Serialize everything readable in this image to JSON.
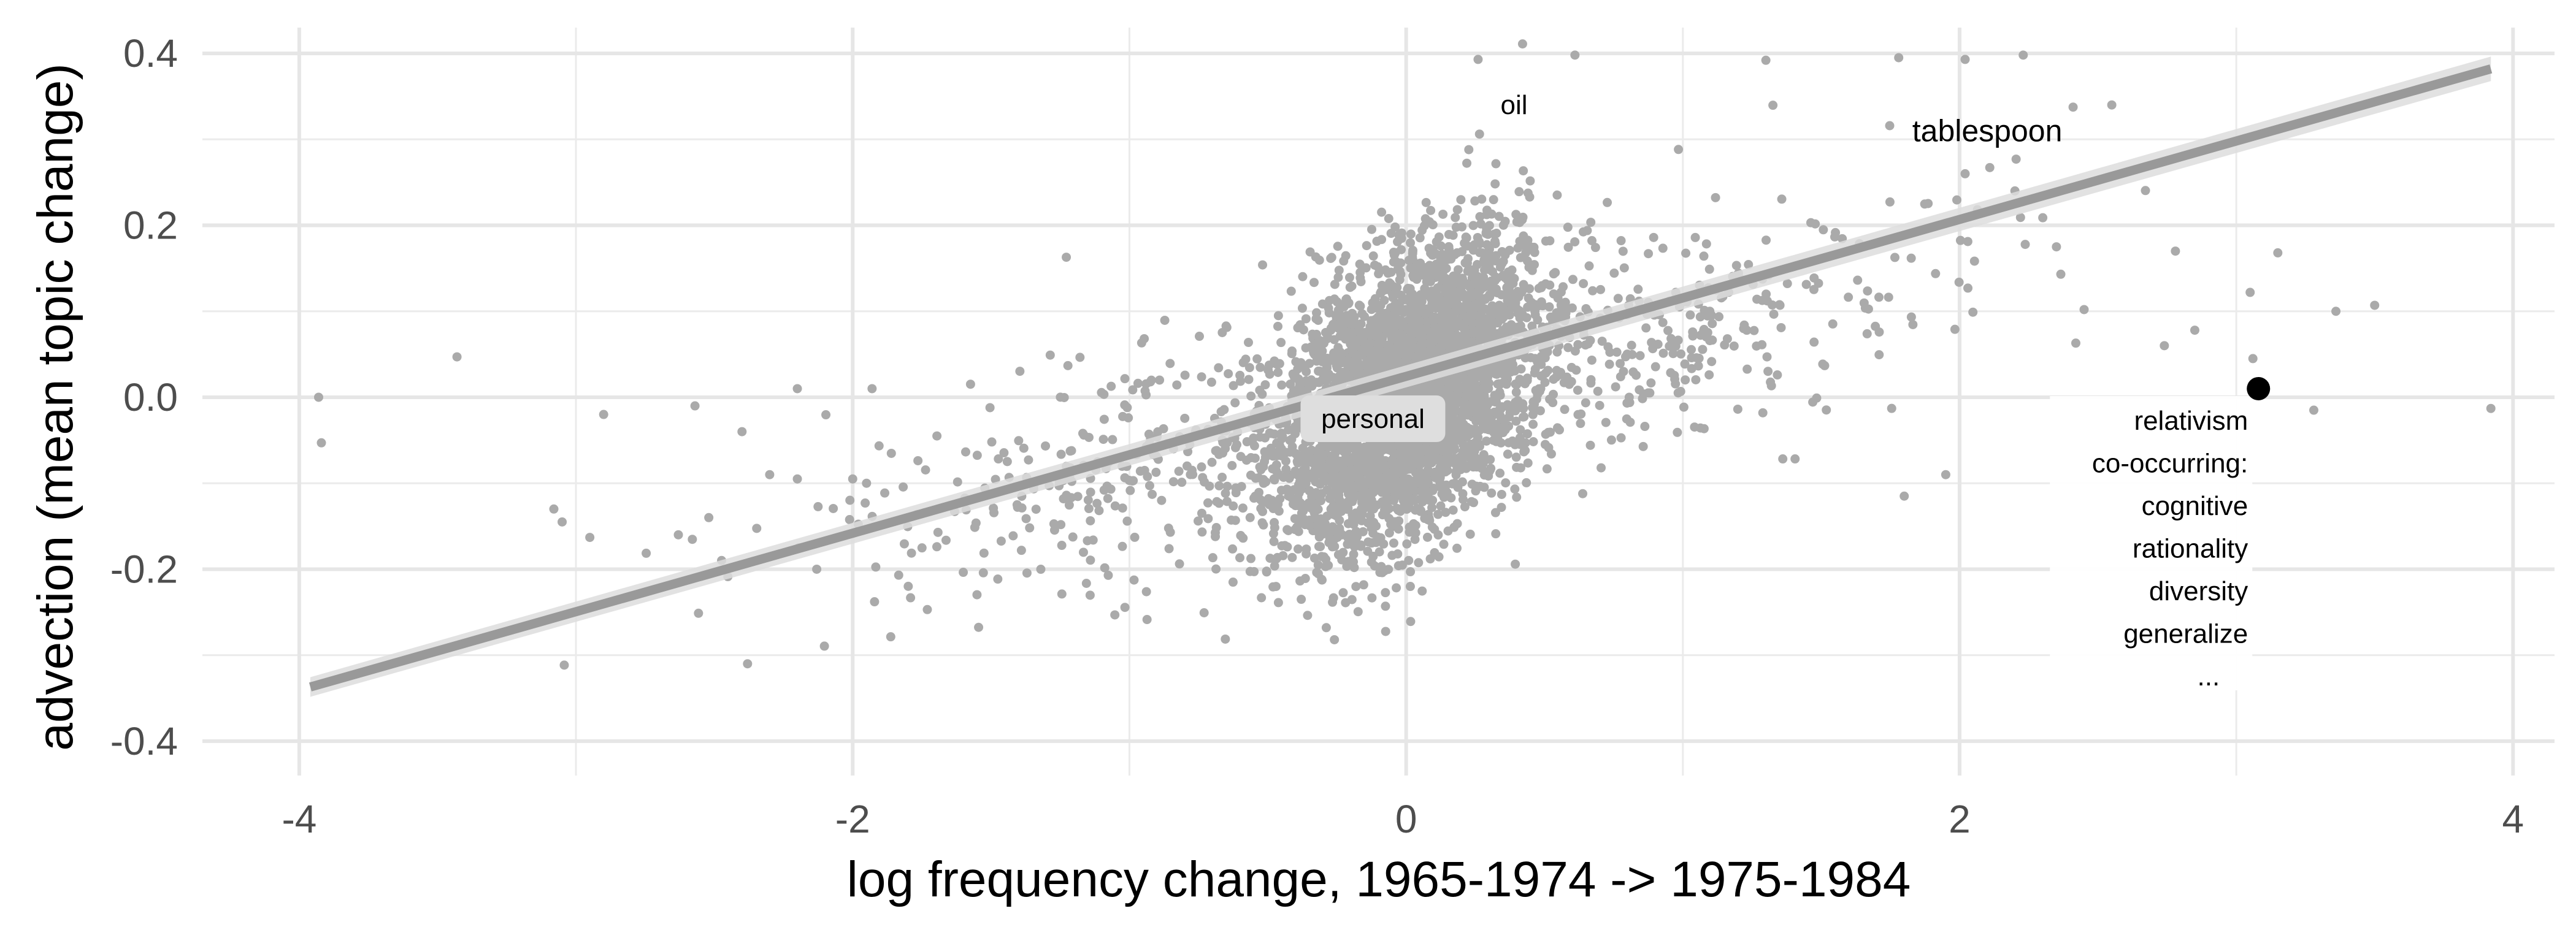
{
  "chart_data": {
    "type": "scatter",
    "title": "",
    "xlabel": "log frequency change, 1965-1974 -> 1975-1984",
    "ylabel": "advection (mean topic change)",
    "xlim": [
      -4.35,
      4.15
    ],
    "ylim": [
      -0.44,
      0.43
    ],
    "x_ticks": [
      -4,
      -2,
      0,
      2,
      4
    ],
    "x_tick_labels": [
      "-4",
      "-2",
      "0",
      "2",
      "4"
    ],
    "y_ticks": [
      -0.4,
      -0.2,
      0.0,
      0.2,
      0.4
    ],
    "y_tick_labels": [
      "-0.4",
      "-0.2",
      "0.0",
      "0.2",
      "0.4"
    ],
    "grid": true,
    "point_color": "#aaaaaa",
    "fit_line": {
      "x": [
        -3.96,
        3.92
      ],
      "y": [
        -0.337,
        0.382
      ],
      "color": "#999999",
      "band_color": "#dddddd"
    },
    "highlight_point": {
      "x": 3.08,
      "y": 0.01,
      "color": "#000000"
    },
    "labeled_points": [
      {
        "label": "oil",
        "x": 0.39,
        "y": 0.34
      },
      {
        "label": "tablespoon",
        "x": 2.1,
        "y": 0.31
      },
      {
        "label": "personal",
        "x": -0.12,
        "y": -0.025
      }
    ],
    "highlight_annotation": [
      "relativism",
      "co-occurring:",
      "cognitive",
      "rationality",
      "diversity",
      "generalize",
      "..."
    ],
    "outlier_points": [
      {
        "x": -3.93,
        "y": 0.0
      },
      {
        "x": -3.92,
        "y": -0.053
      },
      {
        "x": -3.43,
        "y": 0.047
      },
      {
        "x": -3.08,
        "y": -0.13
      },
      {
        "x": -3.05,
        "y": -0.145
      },
      {
        "x": -2.9,
        "y": -0.02
      },
      {
        "x": -2.95,
        "y": -0.163
      },
      {
        "x": -2.63,
        "y": -0.16
      },
      {
        "x": -2.57,
        "y": -0.01
      },
      {
        "x": -2.52,
        "y": -0.14
      },
      {
        "x": -2.38,
        "y": -0.31
      },
      {
        "x": -2.3,
        "y": -0.09
      },
      {
        "x": -2.4,
        "y": -0.04
      },
      {
        "x": -2.2,
        "y": -0.095
      },
      {
        "x": -2.13,
        "y": -0.2
      },
      {
        "x": -2.0,
        "y": -0.095
      },
      {
        "x": -1.95,
        "y": -0.1
      },
      {
        "x": -1.93,
        "y": 0.01
      },
      {
        "x": -2.2,
        "y": 0.01
      },
      {
        "x": 3.28,
        "y": -0.015
      },
      {
        "x": 3.36,
        "y": 0.1
      },
      {
        "x": 3.5,
        "y": 0.107
      },
      {
        "x": 3.92,
        "y": -0.013
      },
      {
        "x": 3.05,
        "y": 0.122
      },
      {
        "x": 3.15,
        "y": 0.168
      },
      {
        "x": 2.85,
        "y": 0.078
      },
      {
        "x": 2.74,
        "y": 0.06
      },
      {
        "x": 2.45,
        "y": 0.102
      },
      {
        "x": 2.42,
        "y": 0.063
      },
      {
        "x": 2.2,
        "y": 0.24
      },
      {
        "x": 2.55,
        "y": 0.34
      },
      {
        "x": 2.02,
        "y": 0.26
      },
      {
        "x": 1.78,
        "y": 0.395
      },
      {
        "x": 2.02,
        "y": 0.393
      },
      {
        "x": 2.23,
        "y": 0.398
      },
      {
        "x": 1.3,
        "y": 0.392
      },
      {
        "x": 0.26,
        "y": 0.393
      },
      {
        "x": 0.61,
        "y": 0.398
      },
      {
        "x": 2.35,
        "y": 0.175
      },
      {
        "x": 2.78,
        "y": 0.17
      },
      {
        "x": 3.06,
        "y": 0.045
      },
      {
        "x": 1.8,
        "y": -0.115
      },
      {
        "x": 1.95,
        "y": -0.09
      }
    ]
  }
}
